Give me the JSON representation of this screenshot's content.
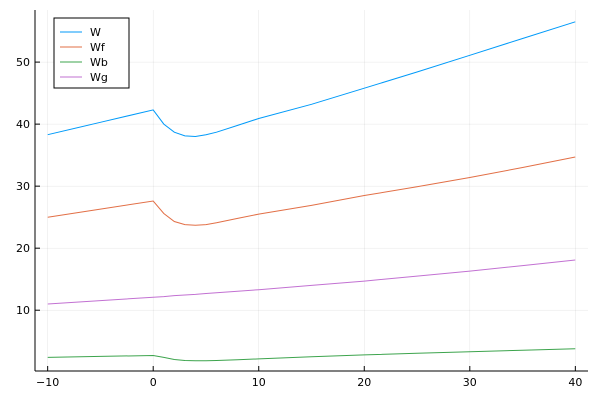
{
  "chart_data": {
    "type": "line",
    "title": "",
    "xlabel": "",
    "ylabel": "",
    "xlim": [
      -11.2,
      41.2
    ],
    "ylim": [
      0.2,
      58.4
    ],
    "xticks": [
      -10,
      0,
      10,
      20,
      30,
      40
    ],
    "yticks": [
      10,
      20,
      30,
      40,
      50
    ],
    "grid": true,
    "legend_position": "top-left",
    "x": [
      -10,
      -5,
      0,
      1,
      2,
      3,
      4,
      5,
      6,
      8,
      10,
      15,
      20,
      25,
      30,
      35,
      40
    ],
    "series": [
      {
        "name": "W",
        "color": "#009af9",
        "values": [
          38.3,
          40.3,
          42.3,
          40.0,
          38.7,
          38.1,
          38.0,
          38.3,
          38.7,
          39.8,
          40.9,
          43.2,
          45.8,
          48.4,
          51.1,
          53.8,
          56.5
        ]
      },
      {
        "name": "Wf",
        "color": "#e26f46",
        "values": [
          25.0,
          26.3,
          27.6,
          25.6,
          24.3,
          23.8,
          23.7,
          23.8,
          24.1,
          24.8,
          25.5,
          26.9,
          28.5,
          29.9,
          31.4,
          33.0,
          34.7
        ]
      },
      {
        "name": "Wb",
        "color": "#3da44d",
        "values": [
          2.4,
          2.55,
          2.7,
          2.4,
          2.05,
          1.9,
          1.85,
          1.85,
          1.9,
          2.0,
          2.15,
          2.5,
          2.8,
          3.05,
          3.3,
          3.55,
          3.8
        ]
      },
      {
        "name": "Wg",
        "color": "#c271d2",
        "values": [
          11.0,
          11.55,
          12.1,
          12.2,
          12.35,
          12.45,
          12.55,
          12.7,
          12.8,
          13.05,
          13.3,
          14.0,
          14.7,
          15.5,
          16.3,
          17.2,
          18.1
        ]
      }
    ]
  }
}
